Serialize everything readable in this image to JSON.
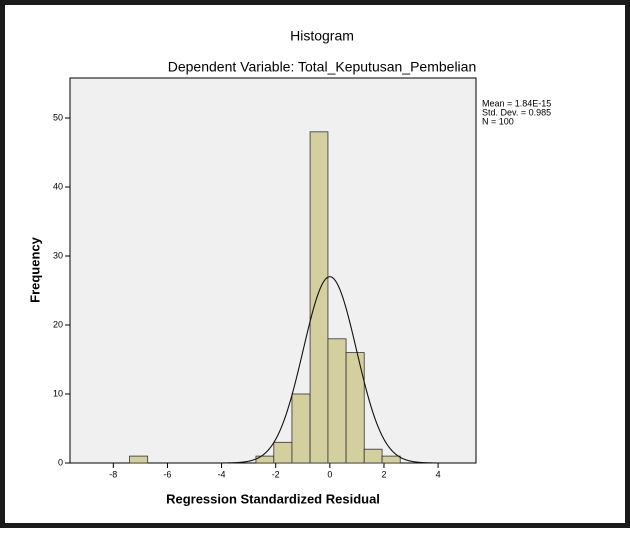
{
  "chart_data": {
    "type": "histogram",
    "title": "Histogram",
    "subtitle": "Dependent Variable: Total_Keputusan_Pembelian",
    "x_label": "Regression Standardized Residual",
    "y_label": "Frequency",
    "bins": [
      -7.4,
      -6.73,
      -6.07,
      -5.4,
      -4.73,
      -4.07,
      -3.4,
      -2.73,
      -2.07,
      -1.4,
      -0.73,
      -0.07,
      0.6,
      1.27,
      1.93,
      2.6
    ],
    "values": [
      1,
      0,
      0,
      0,
      0,
      0,
      0,
      1,
      3,
      10,
      48,
      18,
      16,
      2,
      1
    ],
    "color": "#d4cf9f",
    "xlim": [
      -9.6,
      5.4
    ],
    "ylim": [
      0,
      55.8
    ],
    "xticks": [
      -8,
      -6,
      -4,
      -2,
      0,
      2,
      4
    ],
    "yticks": [
      0,
      10,
      20,
      30,
      40,
      50
    ],
    "mean": {
      "value": 1.84e-15,
      "label": "Mean = 1.84E-15"
    },
    "std_dev": {
      "value": 0.985,
      "label": "Std. Dev. = 0.985"
    },
    "n": {
      "value": 100,
      "label": "N = 100"
    },
    "normal_curve": true
  }
}
